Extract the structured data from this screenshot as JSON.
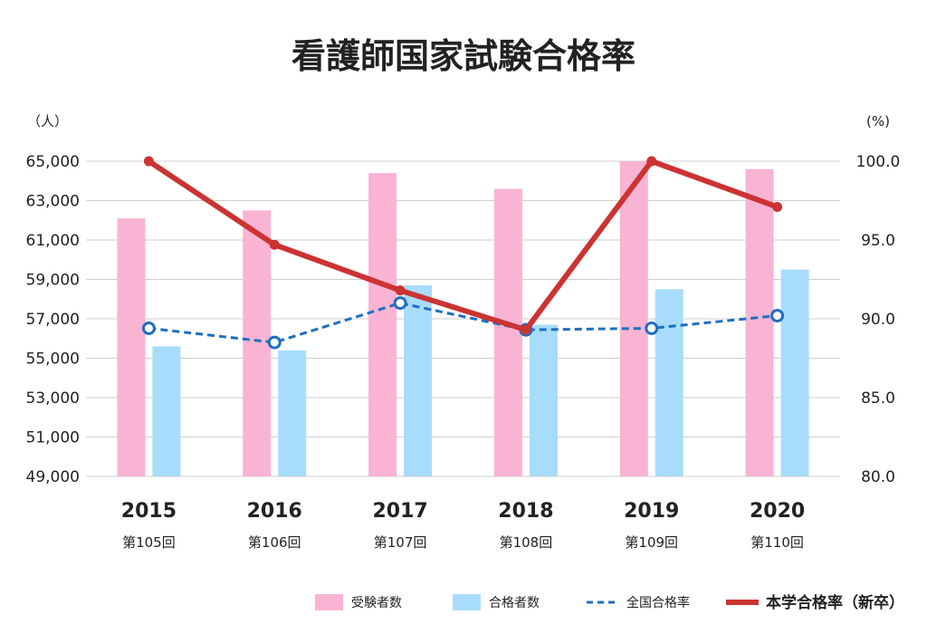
{
  "chart_data": {
    "type": "bar",
    "title": "看護師国家試験合格率",
    "categories": [
      "2015",
      "2016",
      "2017",
      "2018",
      "2019",
      "2020"
    ],
    "category_sublabels": [
      "第105回",
      "第106回",
      "第107回",
      "第108回",
      "第109回",
      "第110回"
    ],
    "left_axis": {
      "unit": "（人）",
      "range": [
        49000,
        65000
      ],
      "ticks": [
        49000,
        51000,
        53000,
        55000,
        57000,
        59000,
        61000,
        63000,
        65000
      ],
      "tick_labels": [
        "49,000",
        "51,000",
        "53,000",
        "55,000",
        "57,000",
        "59,000",
        "61,000",
        "63,000",
        "65,000"
      ]
    },
    "right_axis": {
      "unit": "(%)",
      "range": [
        80.0,
        100.0
      ],
      "ticks": [
        80,
        85,
        90,
        95,
        100
      ],
      "tick_labels": [
        "80.0",
        "85.0",
        "90.0",
        "95.0",
        "100.0"
      ]
    },
    "grid": true,
    "legend_position": "bottom-right",
    "series": [
      {
        "name": "受験者数",
        "type": "bar",
        "axis": "left",
        "color": "#f9b4d4",
        "values": [
          62100,
          62500,
          64400,
          63600,
          65000,
          64600
        ]
      },
      {
        "name": "合格者数",
        "type": "bar",
        "axis": "left",
        "color": "#a8dcfb",
        "values": [
          55600,
          55400,
          58700,
          56700,
          58500,
          59500
        ]
      },
      {
        "name": "全国合格率",
        "type": "line",
        "style": "dashed",
        "axis": "right",
        "color": "#1f6fbf",
        "values": [
          89.4,
          88.5,
          91.0,
          89.3,
          89.4,
          90.2
        ]
      },
      {
        "name": "本学合格率（新卒）",
        "type": "line",
        "style": "solid",
        "axis": "right",
        "color": "#cc3333",
        "values": [
          100.0,
          94.7,
          91.8,
          89.3,
          100.0,
          97.1
        ]
      }
    ]
  }
}
